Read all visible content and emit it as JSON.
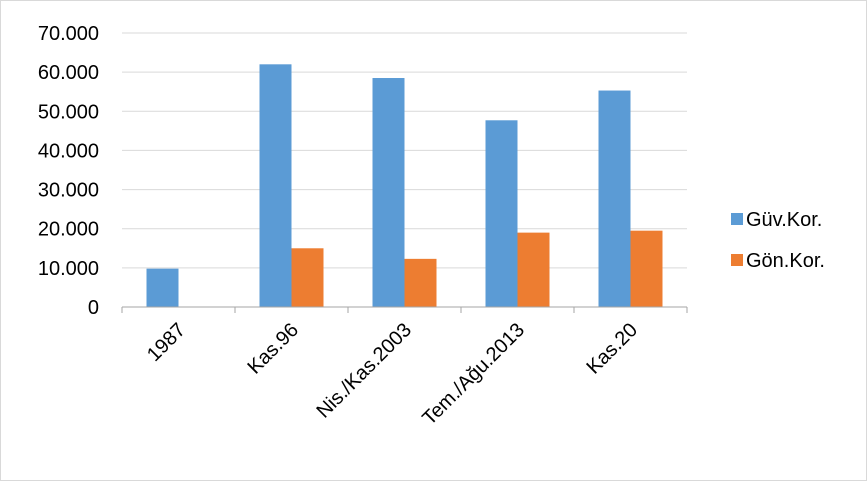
{
  "chart_data": {
    "type": "bar",
    "categories": [
      "1987",
      "Kas.96",
      "Nis./Kas.2003",
      "Tem./Ağu.2013",
      "Kas.20"
    ],
    "series": [
      {
        "name": "Güv.Kor.",
        "color": "#5b9bd5",
        "values": [
          9800,
          62000,
          58500,
          47700,
          55300
        ]
      },
      {
        "name": "Gön.Kor.",
        "color": "#ed7d31",
        "values": [
          null,
          15000,
          12300,
          19000,
          19500
        ]
      }
    ],
    "ylim": [
      0,
      70000
    ],
    "yticks": [
      0,
      10000,
      20000,
      30000,
      40000,
      50000,
      60000,
      70000
    ],
    "ytick_labels": [
      "0",
      "10.000",
      "20.000",
      "30.000",
      "40.000",
      "50.000",
      "60.000",
      "70.000"
    ],
    "grid": true,
    "legend_position": "right",
    "title": "",
    "xlabel": "",
    "ylabel": ""
  }
}
